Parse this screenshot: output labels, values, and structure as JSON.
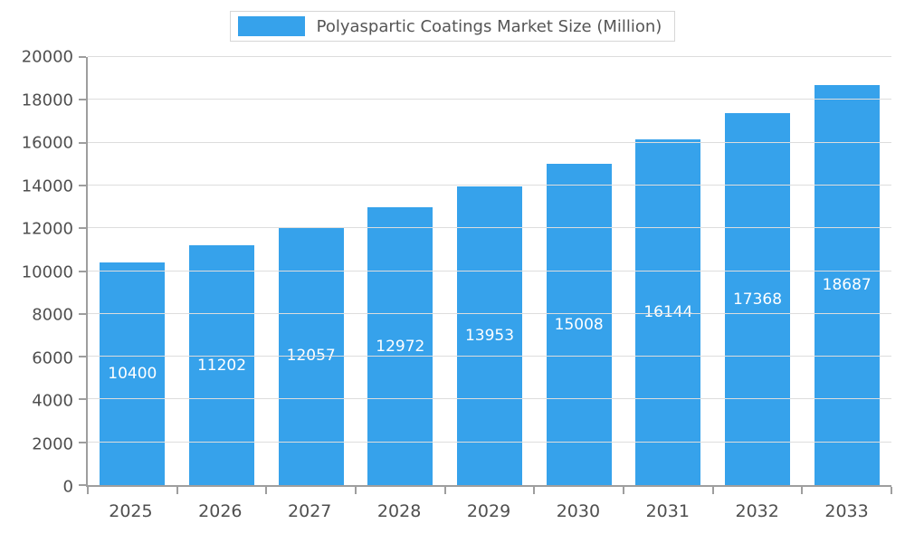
{
  "legend": {
    "title": "Polyaspartic Coatings Market Size (Million)"
  },
  "chart_data": {
    "type": "bar",
    "title": "Polyaspartic Coatings Market Size (Million)",
    "categories": [
      "2025",
      "2026",
      "2027",
      "2028",
      "2029",
      "2030",
      "2031",
      "2032",
      "2033"
    ],
    "values": [
      10400,
      11202,
      12057,
      12972,
      13953,
      15008,
      16144,
      17368,
      18687
    ],
    "xlabel": "",
    "ylabel": "",
    "ylim": [
      0,
      20000
    ],
    "ytick_step": 2000,
    "ytick_labels": [
      "0",
      "2000",
      "4000",
      "6000",
      "8000",
      "10000",
      "12000",
      "14000",
      "16000",
      "18000",
      "20000"
    ],
    "grid": true,
    "legend_position": "top-center",
    "bar_value_labels_inside": true,
    "colors": {
      "bar": "#36A2EB",
      "bar_label": "#FFFFFF",
      "axis": "#9E9E9E",
      "grid": "#DDDDDD",
      "tick_text": "#4F4F4F",
      "legend_text": "#555555"
    }
  }
}
